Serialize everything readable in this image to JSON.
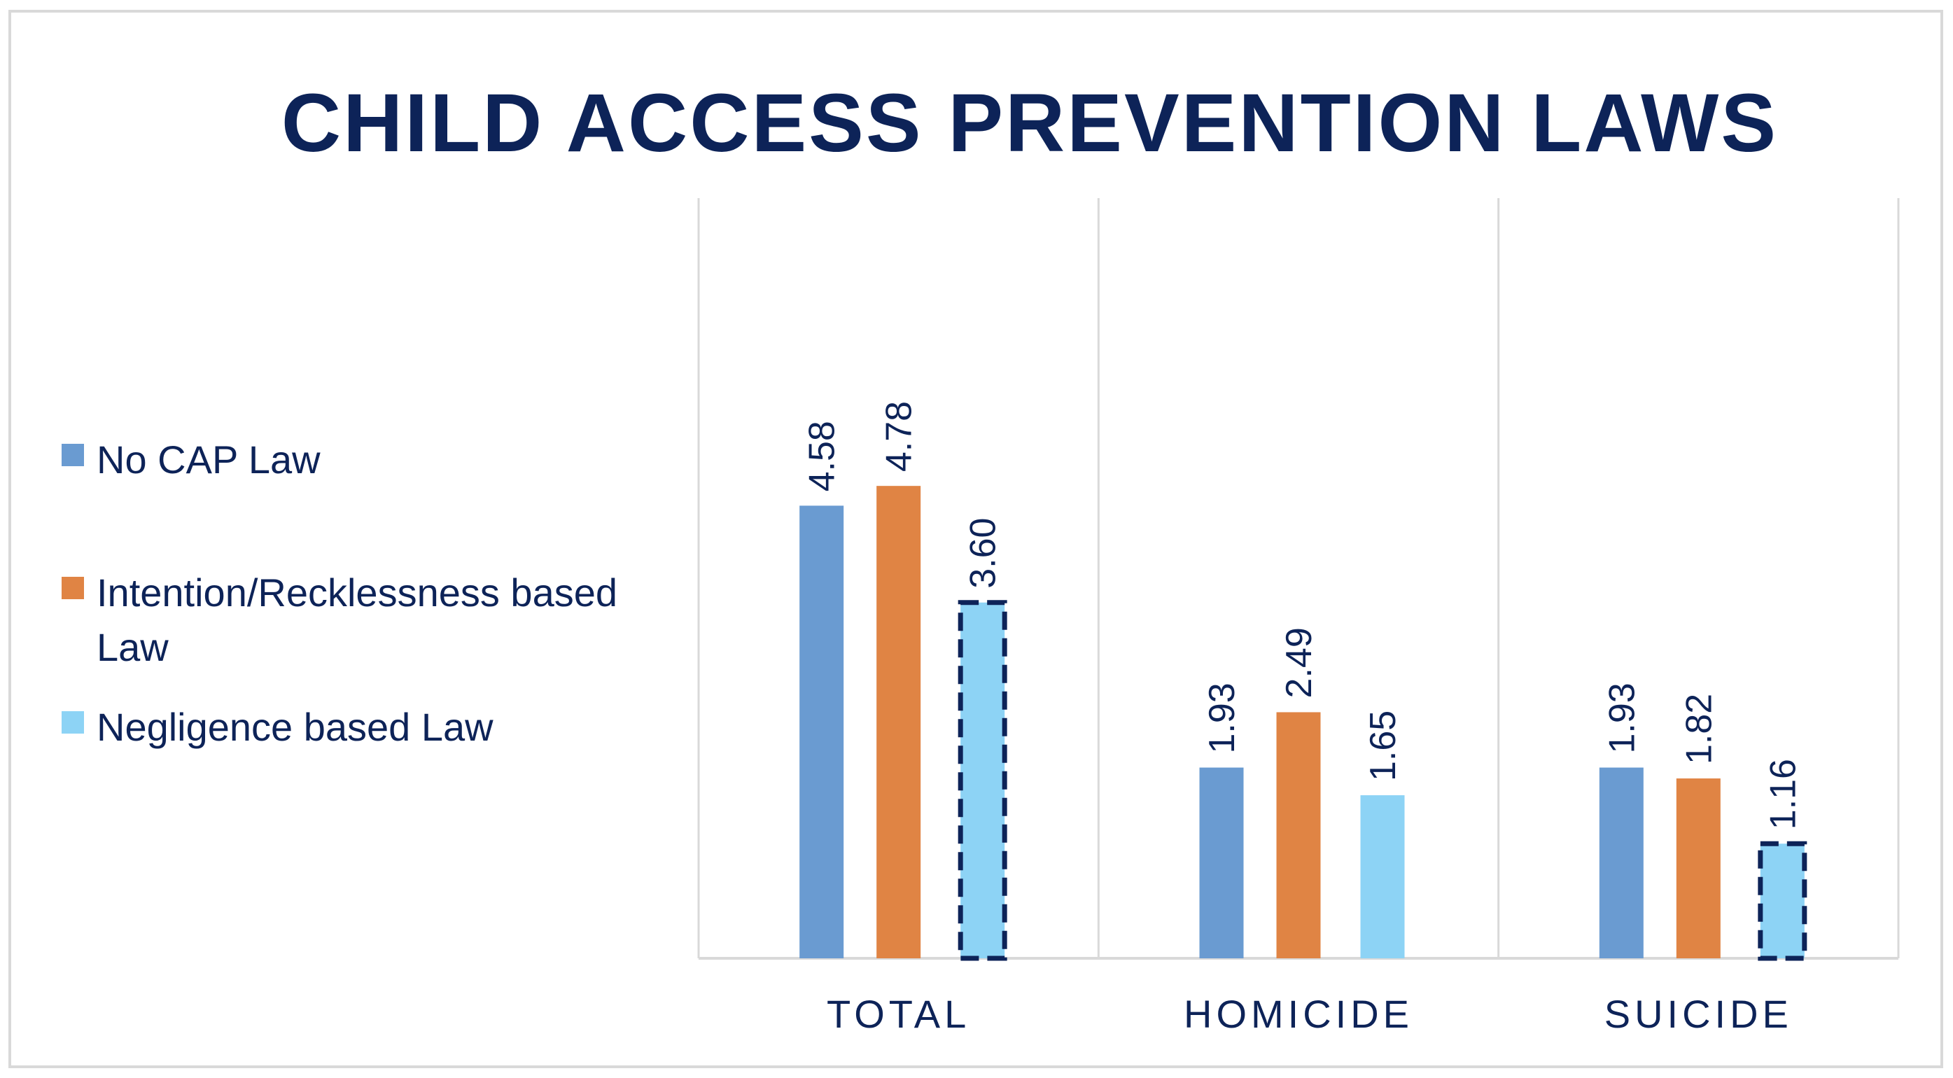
{
  "chart_data": {
    "type": "bar",
    "title": "CHILD ACCESS PREVENTION LAWS",
    "categories": [
      "TOTAL",
      "HOMICIDE",
      "SUICIDE"
    ],
    "series": [
      {
        "name": "No CAP Law",
        "color": "#6a9bd1",
        "values": [
          4.58,
          1.93,
          1.93
        ]
      },
      {
        "name": "Intention/Recklessness based Law",
        "color": "#e08444",
        "values": [
          4.78,
          2.49,
          1.82
        ]
      },
      {
        "name": "Negligence based Law",
        "color": "#8dd3f5",
        "values": [
          3.6,
          1.65,
          1.16
        ]
      }
    ],
    "data_labels": [
      [
        "4.58",
        "1.93",
        "1.93"
      ],
      [
        "4.78",
        "2.49",
        "1.82"
      ],
      [
        "3.60",
        "1.65",
        "1.16"
      ]
    ],
    "highlighted_bars": [
      {
        "series": 2,
        "category": 0
      },
      {
        "series": 2,
        "category": 2
      }
    ],
    "ylim": [
      0,
      6.0
    ],
    "legend_position": "left",
    "grid": "vertical category separators",
    "xlabel": "",
    "ylabel": ""
  }
}
